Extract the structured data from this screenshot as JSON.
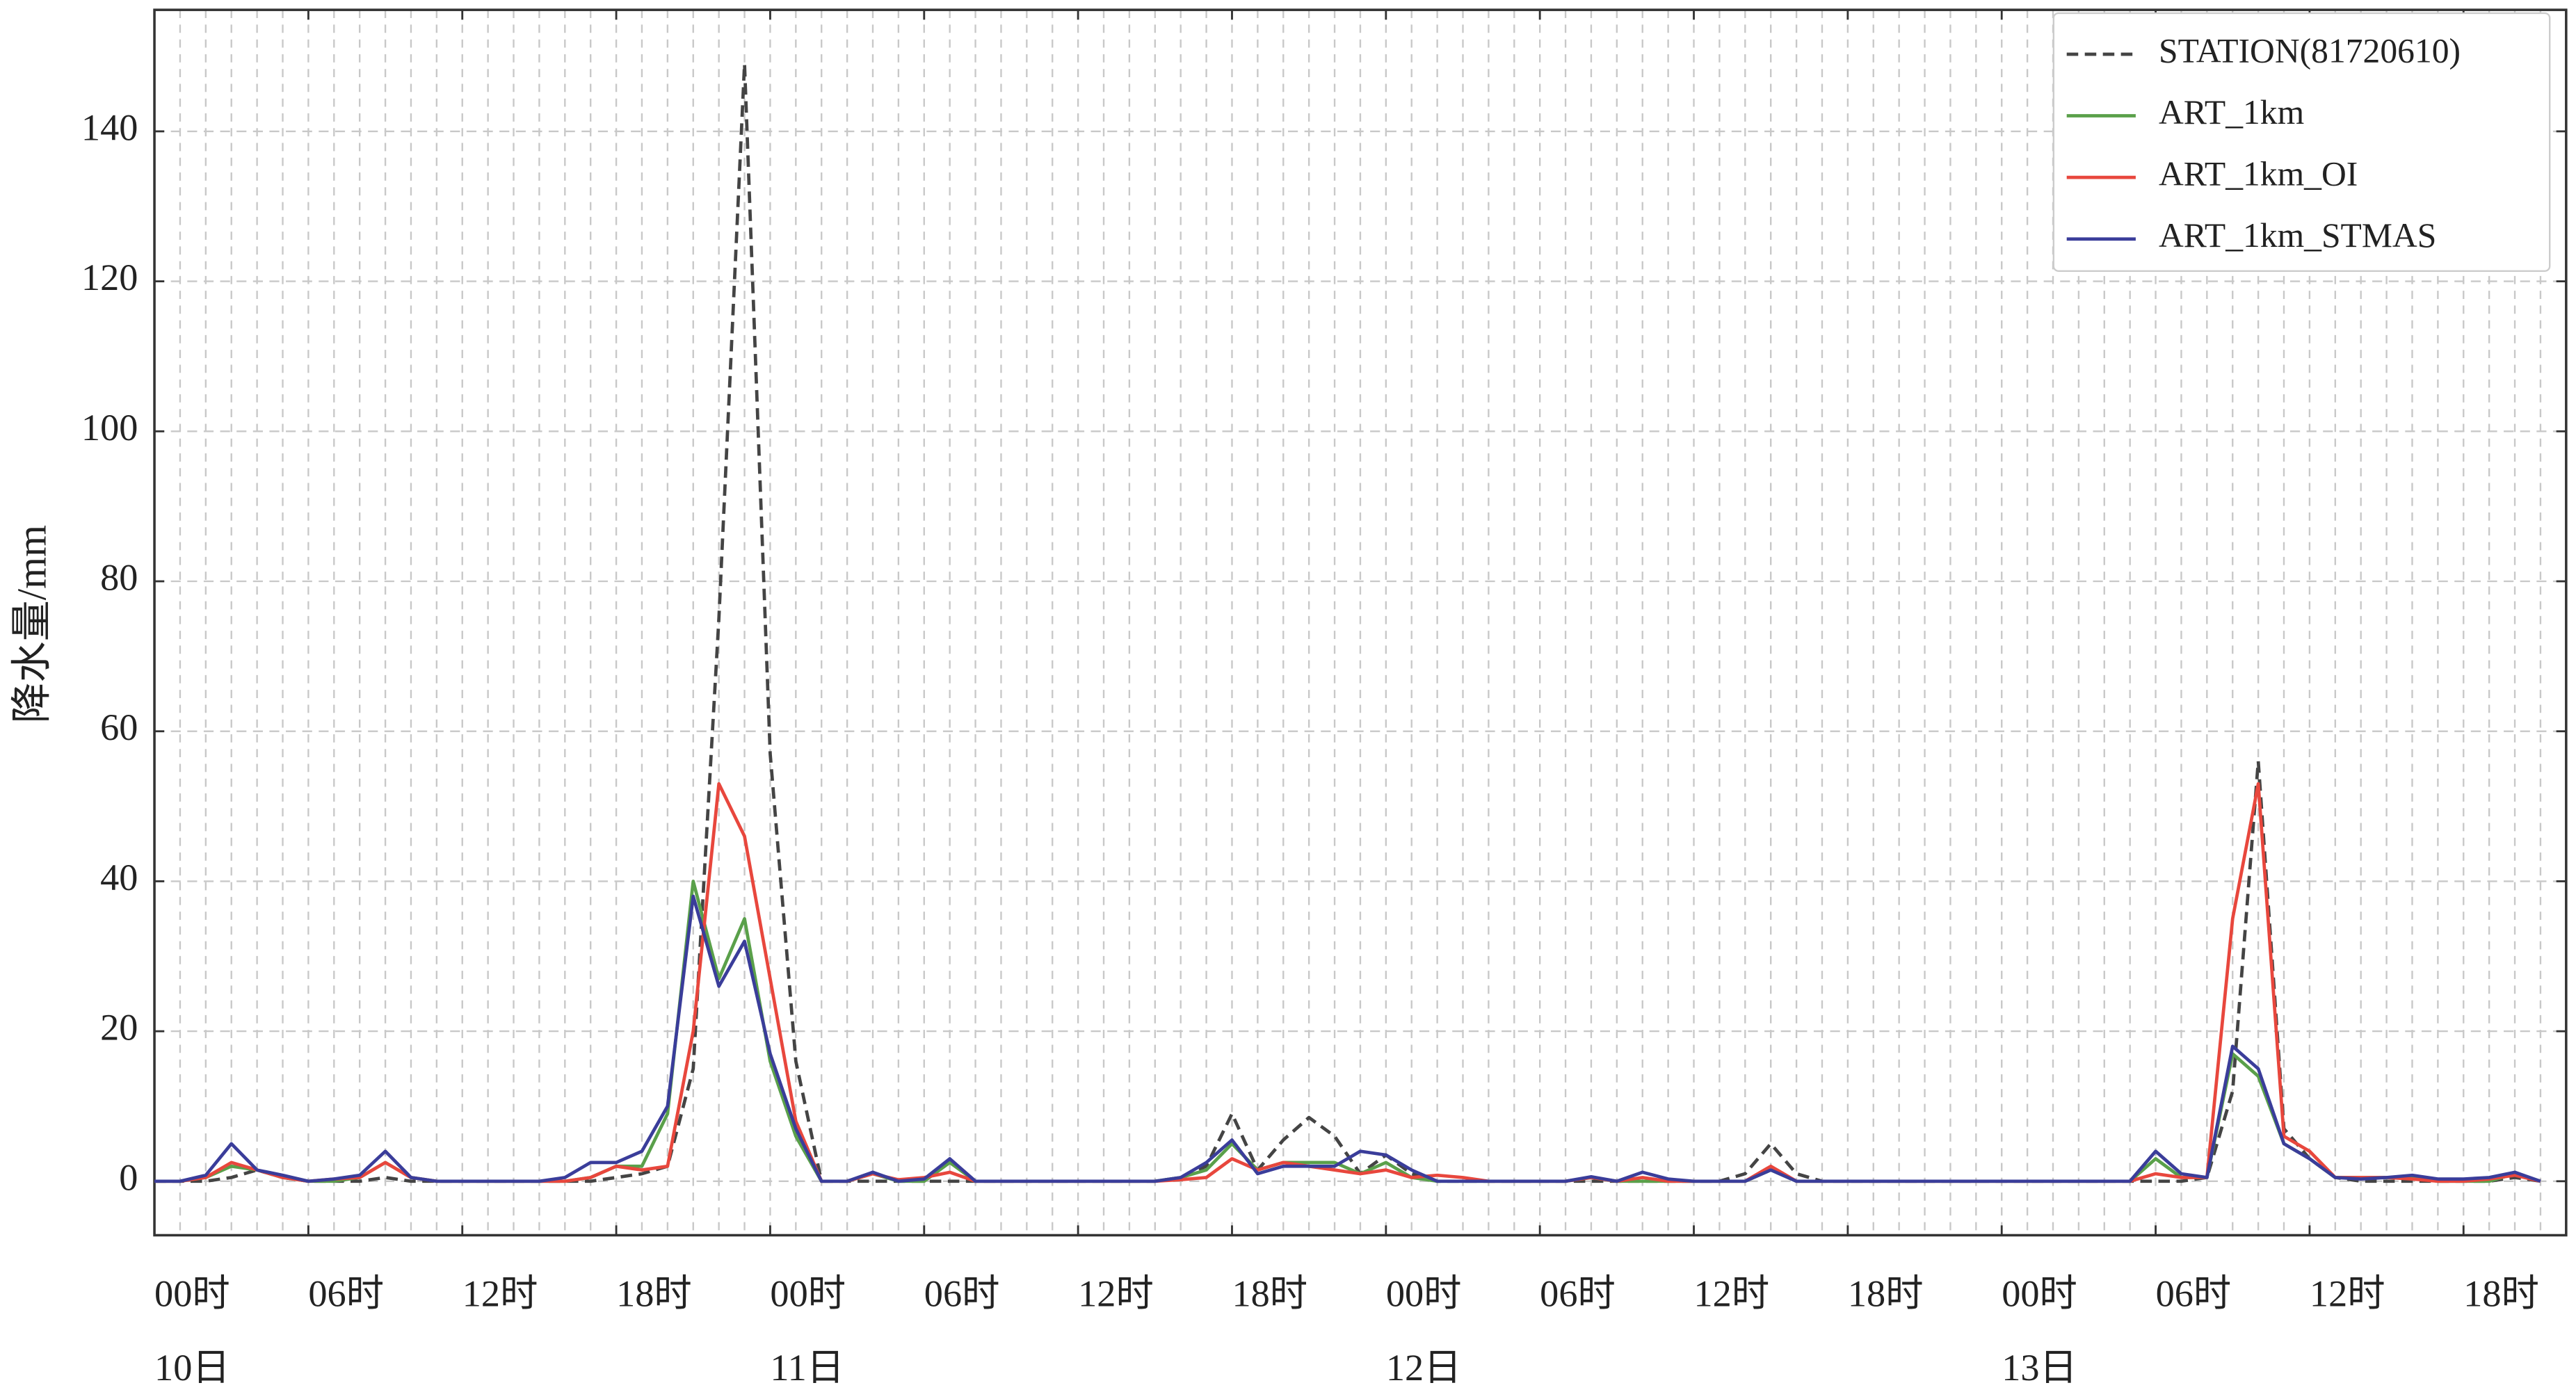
{
  "chart_data": {
    "type": "line",
    "y_label": "降水量/mm",
    "x": [
      0,
      1,
      2,
      3,
      4,
      5,
      6,
      7,
      8,
      9,
      10,
      11,
      12,
      13,
      14,
      15,
      16,
      17,
      18,
      19,
      20,
      21,
      22,
      23,
      24,
      25,
      26,
      27,
      28,
      29,
      30,
      31,
      32,
      33,
      34,
      35,
      36,
      37,
      38,
      39,
      40,
      41,
      42,
      43,
      44,
      45,
      46,
      47,
      48,
      49,
      50,
      51,
      52,
      53,
      54,
      55,
      56,
      57,
      58,
      59,
      60,
      61,
      62,
      63,
      64,
      65,
      66,
      67,
      68,
      69,
      70,
      71,
      72,
      73,
      74,
      75,
      76,
      77,
      78,
      79,
      80,
      81,
      82,
      83,
      84,
      85,
      86,
      87,
      88,
      89,
      90,
      91,
      92,
      93
    ],
    "series": [
      {
        "name": "STATION(81720610)",
        "color": "#444444",
        "dashed": true,
        "values": [
          0,
          0,
          0,
          0.5,
          1.5,
          0.5,
          0,
          0,
          0,
          0.5,
          0,
          0,
          0,
          0,
          0,
          0,
          0,
          0,
          0.5,
          1,
          2,
          15,
          75,
          149,
          57,
          16,
          0,
          0,
          0,
          0,
          0,
          0,
          0,
          0,
          0,
          0,
          0,
          0,
          0,
          0,
          0.5,
          2,
          9,
          1.5,
          5.5,
          8.5,
          6,
          1,
          3.5,
          1,
          0,
          0,
          0,
          0,
          0,
          0,
          0,
          0,
          0,
          0,
          0,
          0,
          1,
          5,
          1,
          0,
          0,
          0,
          0,
          0,
          0,
          0,
          0,
          0,
          0,
          0,
          0,
          0,
          0,
          0,
          0.5,
          12,
          56,
          7,
          3,
          0.5,
          0,
          0,
          0,
          0,
          0,
          0,
          0.5,
          0
        ]
      },
      {
        "name": "ART_1km",
        "color": "#5aa04a",
        "values": [
          0,
          0,
          0.5,
          2,
          1.5,
          0.5,
          0,
          0,
          0.5,
          2.5,
          0.5,
          0,
          0,
          0,
          0,
          0,
          0,
          0.5,
          2,
          2,
          9,
          40,
          27,
          35,
          16,
          6,
          0,
          0,
          1,
          0,
          0,
          2.5,
          0,
          0,
          0,
          0,
          0,
          0,
          0,
          0,
          0.5,
          1.5,
          5,
          1.5,
          2.5,
          2.5,
          2.5,
          1,
          2.5,
          0.5,
          0,
          0,
          0,
          0,
          0,
          0,
          0.5,
          0,
          0,
          0,
          0,
          0,
          0,
          1.5,
          0,
          0,
          0,
          0,
          0,
          0,
          0,
          0,
          0,
          0,
          0,
          0,
          0,
          0,
          3,
          0.5,
          0.5,
          17,
          14,
          5,
          3,
          0.5,
          0.5,
          0.5,
          0.5,
          0,
          0,
          0,
          1,
          0
        ]
      },
      {
        "name": "ART_1km_OI",
        "color": "#e8473d",
        "values": [
          0,
          0,
          0.5,
          2.5,
          1.5,
          0.5,
          0,
          0.3,
          0.5,
          2.5,
          0.5,
          0,
          0,
          0,
          0,
          0,
          0,
          0.5,
          2,
          1.5,
          2,
          20,
          53,
          46,
          27,
          8,
          0,
          0,
          1,
          0.2,
          0.5,
          1.2,
          0,
          0,
          0,
          0,
          0,
          0,
          0,
          0,
          0.2,
          0.5,
          3,
          1.5,
          2.5,
          2,
          1.5,
          1,
          1.5,
          0.5,
          0.8,
          0.5,
          0,
          0,
          0,
          0,
          0.5,
          0,
          0.5,
          0,
          0,
          0,
          0,
          2,
          0,
          0,
          0,
          0,
          0,
          0,
          0,
          0,
          0,
          0,
          0,
          0,
          0,
          0,
          1,
          0.5,
          0.5,
          35,
          53,
          6,
          4,
          0.5,
          0.5,
          0.5,
          0.3,
          0,
          0,
          0.3,
          0.8,
          0
        ]
      },
      {
        "name": "ART_1km_STMAS",
        "color": "#3a3d9a",
        "values": [
          0,
          0,
          0.8,
          5,
          1.5,
          0.8,
          0,
          0.3,
          0.8,
          4,
          0.5,
          0,
          0,
          0,
          0,
          0,
          0.5,
          2.5,
          2.5,
          4,
          10,
          38,
          26,
          32,
          17,
          7,
          0,
          0,
          1.2,
          0,
          0.3,
          3,
          0,
          0,
          0,
          0,
          0,
          0,
          0,
          0,
          0.5,
          2.5,
          5.5,
          1,
          2,
          2,
          2,
          4,
          3.5,
          1.5,
          0,
          0,
          0,
          0,
          0,
          0,
          0.6,
          0,
          1.2,
          0.3,
          0,
          0,
          0,
          1.5,
          0,
          0,
          0,
          0,
          0,
          0,
          0,
          0,
          0,
          0,
          0,
          0,
          0,
          0,
          4,
          1,
          0.5,
          18,
          15,
          5,
          3,
          0.5,
          0.3,
          0.5,
          0.8,
          0.3,
          0.3,
          0.5,
          1.2,
          0
        ]
      }
    ],
    "xlim": [
      0,
      94
    ],
    "xticks": [
      {
        "value": 0,
        "label": "00时"
      },
      {
        "value": 6,
        "label": "06时"
      },
      {
        "value": 12,
        "label": "12时"
      },
      {
        "value": 18,
        "label": "18时"
      },
      {
        "value": 24,
        "label": "00时"
      },
      {
        "value": 30,
        "label": "06时"
      },
      {
        "value": 36,
        "label": "12时"
      },
      {
        "value": 42,
        "label": "18时"
      },
      {
        "value": 48,
        "label": "00时"
      },
      {
        "value": 54,
        "label": "06时"
      },
      {
        "value": 60,
        "label": "12时"
      },
      {
        "value": 66,
        "label": "18时"
      },
      {
        "value": 72,
        "label": "00时"
      },
      {
        "value": 78,
        "label": "06时"
      },
      {
        "value": 84,
        "label": "12时"
      },
      {
        "value": 90,
        "label": "18时"
      }
    ],
    "day_ticks": [
      {
        "value": 0,
        "label": "10日"
      },
      {
        "value": 24,
        "label": "11日"
      },
      {
        "value": 48,
        "label": "12日"
      },
      {
        "value": 72,
        "label": "13日"
      }
    ],
    "x_minor_grid_step": 1,
    "ylim": [
      -7.2,
      156.2
    ],
    "yticks": [
      0,
      20,
      40,
      60,
      80,
      100,
      120,
      140
    ],
    "grid": true,
    "legend": "upper right"
  }
}
